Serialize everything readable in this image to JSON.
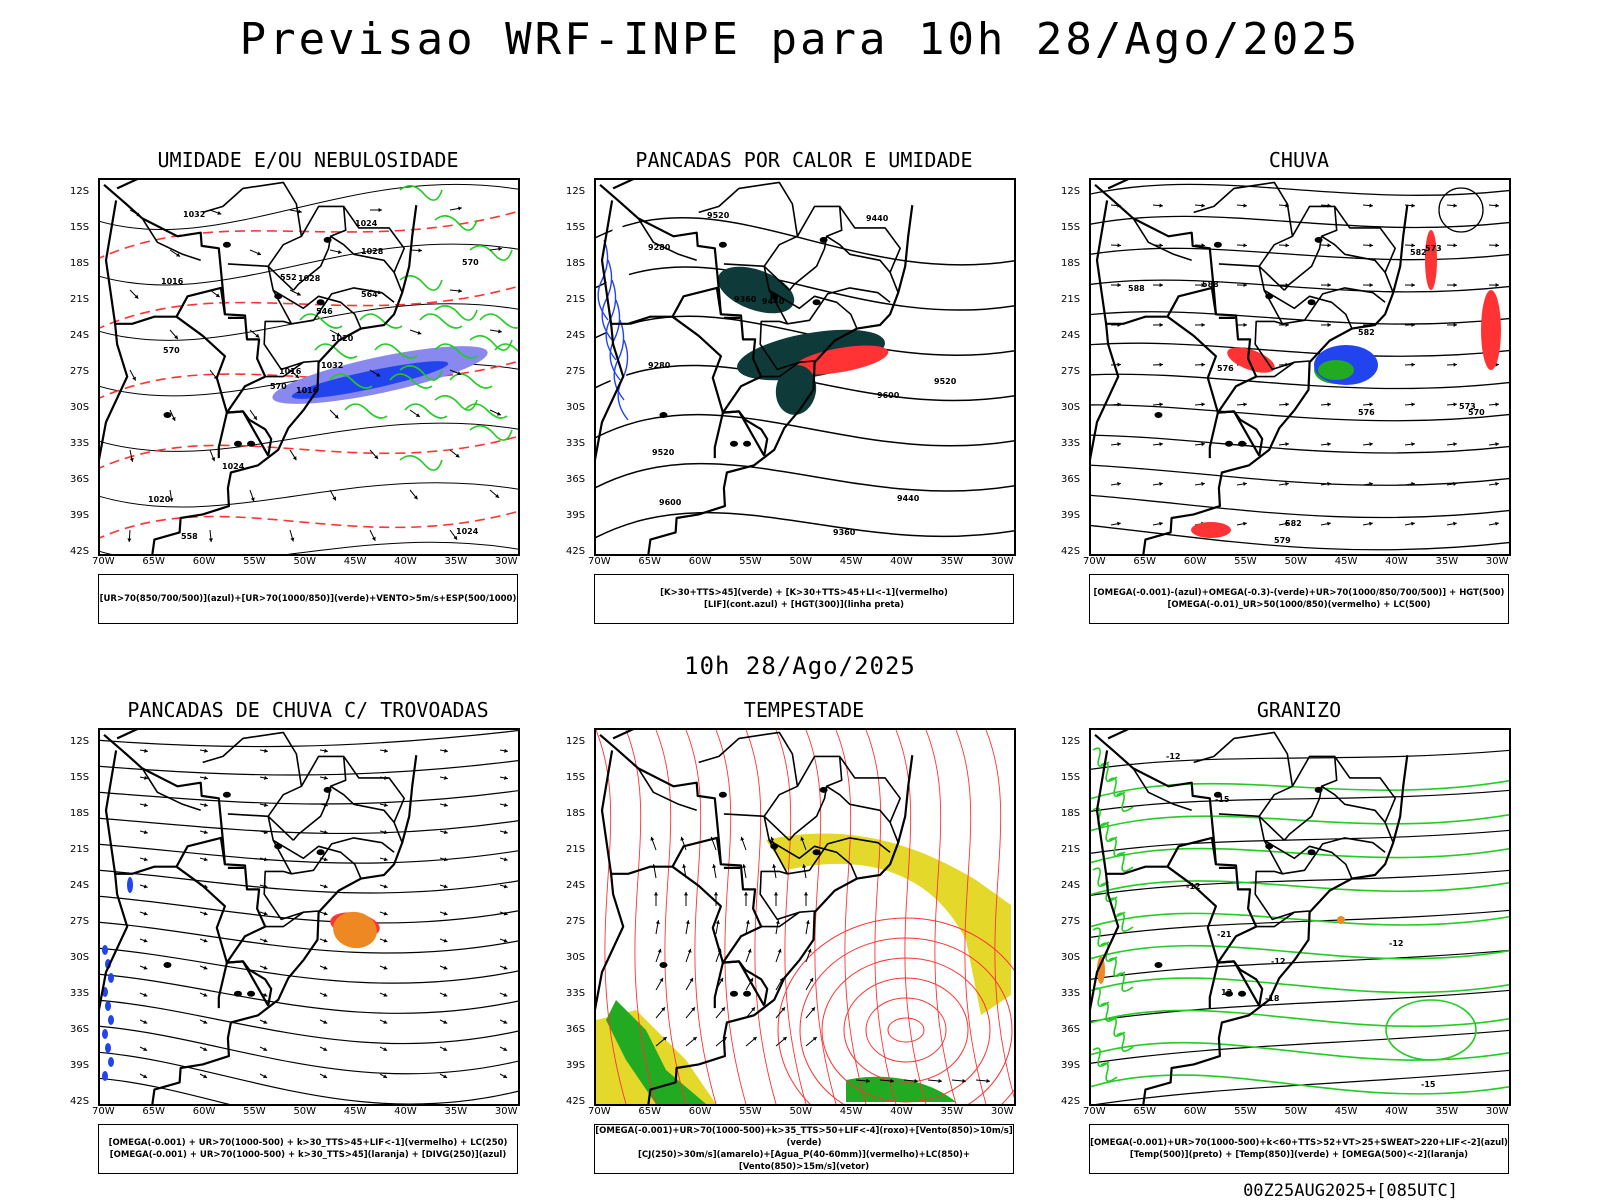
{
  "title": "Previsao WRF-INPE  para 10h 28/Ago/2025",
  "middle_title": "10h 28/Ago/2025",
  "footer": "00Z25AUG2025+[085UTC]",
  "axis": {
    "lat_ticks": [
      "12S",
      "15S",
      "18S",
      "21S",
      "24S",
      "27S",
      "30S",
      "33S",
      "36S",
      "39S",
      "42S"
    ],
    "lon_ticks": [
      "70W",
      "65W",
      "60W",
      "55W",
      "50W",
      "45W",
      "40W",
      "35W",
      "30W"
    ]
  },
  "colors": {
    "green": "#22cc22",
    "red": "#ff3333",
    "blue": "#2244ee",
    "purple": "#8888ee",
    "orange": "#ee8822",
    "yellow": "#e4d82a",
    "darkgreen": "#0e3a3a",
    "green_fill": "#22aa22"
  },
  "panels": [
    {
      "id": "umidade",
      "title": "UMIDADE E/OU NEBULOSIDADE",
      "legend": [
        "[UR>70(850/700/500)](azul)+[UR>70(1000/850)](verde)+VENTO>5m/s+ESP(500/1000)"
      ],
      "contour_labels": [
        "1016",
        "1016",
        "1016",
        "1020",
        "1020",
        "1024",
        "1024",
        "1028",
        "1028",
        "1032",
        "1032",
        "1024",
        "570",
        "570",
        "570",
        "564",
        "558",
        "552",
        "546"
      ]
    },
    {
      "id": "pancadas-calor",
      "title": "PANCADAS POR CALOR E UMIDADE",
      "legend": [
        "[K>30+TTS>45](verde) + [K>30+TTS>45+LI<-1](vermelho)",
        "[LIF](cont.azul) + [HGT(300)](linha preta)"
      ],
      "contour_labels": [
        "9600",
        "9520",
        "9600",
        "9520",
        "9440",
        "9440",
        "9520",
        "9440",
        "9360",
        "9360",
        "9280",
        "9280"
      ]
    },
    {
      "id": "chuva",
      "title": "CHUVA",
      "legend": [
        "[OMEGA(-0.001)-(azul)+OMEGA(-0.3)-(verde)+UR>70(1000/850/700/500)] + HGT(500)",
        "[OMEGA(-0.01)_UR>50(1000/850)(vermelho) + LC(500)"
      ],
      "contour_labels": [
        "588",
        "588",
        "582",
        "582",
        "582",
        "579",
        "576",
        "576",
        "573",
        "570",
        "573"
      ]
    },
    {
      "id": "trovoadas",
      "title": "PANCADAS DE CHUVA C/ TROVOADAS",
      "legend": [
        "[OMEGA(-0.001) + UR>70(1000-500) + k>30_TTS>45+LIF<-1](vermelho) + LC(250)",
        "[OMEGA(-0.001) + UR>70(1000-500) + k>30_TTS>45](laranja) + [DIVG(250)](azul)"
      ],
      "contour_labels": []
    },
    {
      "id": "tempestade",
      "title": "TEMPESTADE",
      "legend": [
        "[OMEGA(-0.001)+UR>70(1000-500)+k>35_TTS>50+LIF<-4](roxo)+[Vento(850)>10m/s](verde)",
        "[CJ(250)>30m/s](amarelo)+[Agua_P(40-60mm)](vermelho)+LC(850)+[Vento(850)>15m/s](vetor)"
      ],
      "contour_labels": []
    },
    {
      "id": "granizo",
      "title": "GRANIZO",
      "legend": [
        "[OMEGA(-0.001)+UR>70(1000-500)+k<60+TTS>52+VT>25+SWEAT>220+LIF<-2](azul)",
        "[Temp(500)](preto) + [Temp(850)](verde) + [OMEGA(500)<-2](laranja)"
      ],
      "contour_labels": [
        "-12",
        "-12",
        "-12",
        "-12",
        "-15",
        "-15",
        "-18",
        "-21",
        "12"
      ]
    }
  ]
}
